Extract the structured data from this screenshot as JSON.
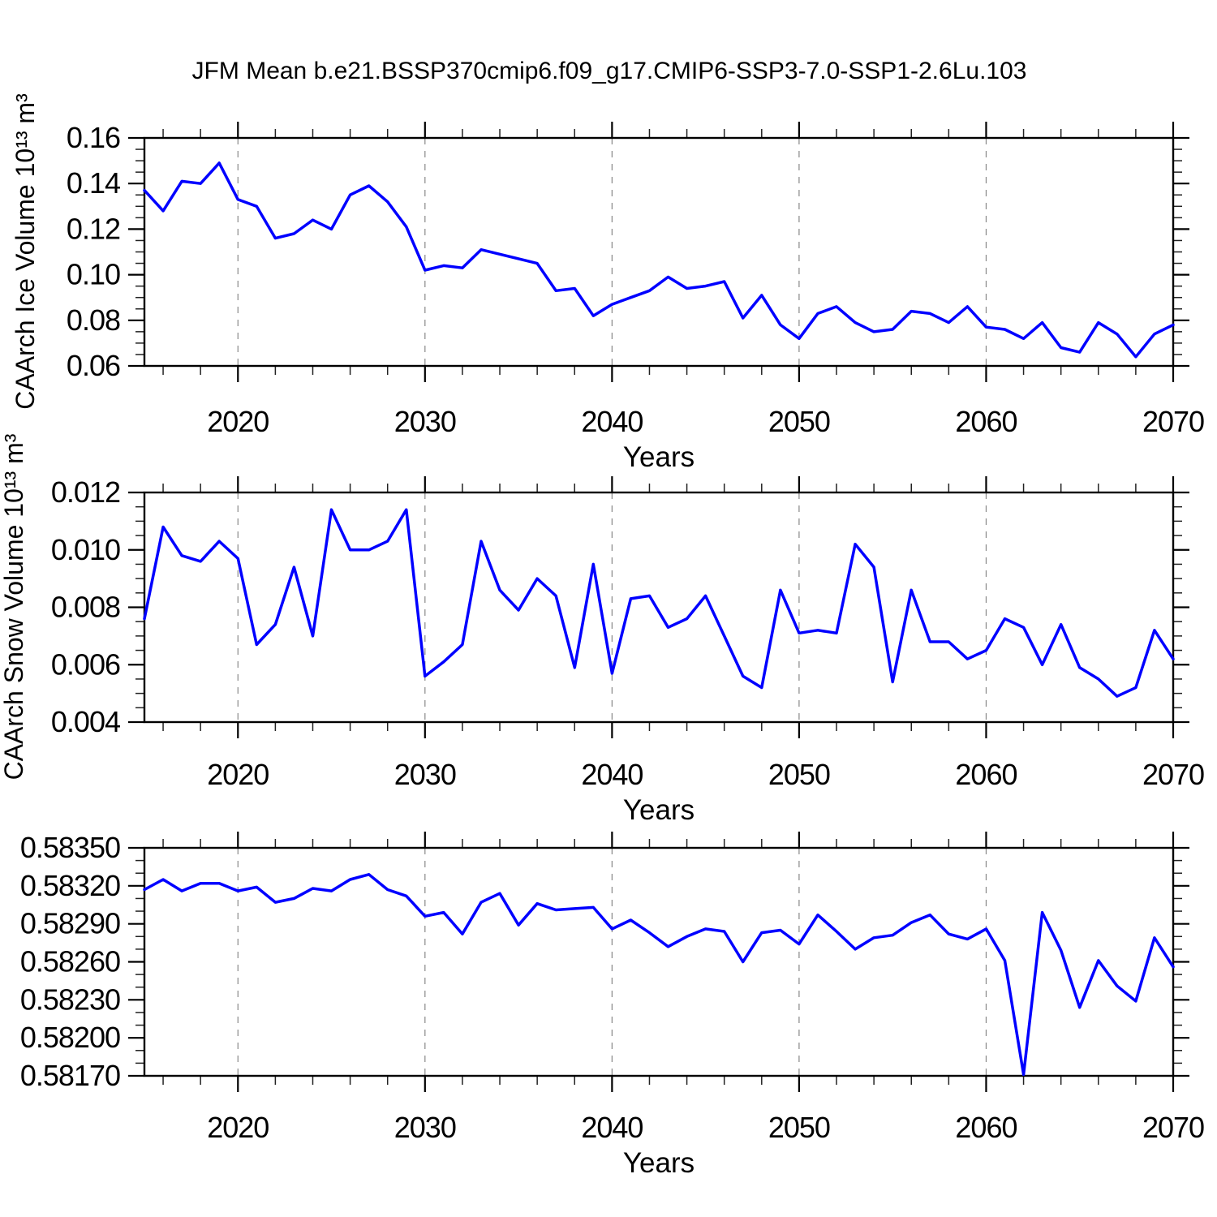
{
  "title": "JFM Mean b.e21.BSSP370cmip6.f09_g17.CMIP6-SSP3-7.0-SSP1-2.6Lu.103",
  "line_color": "#0000ff",
  "grid_color": "#888888",
  "frame_color": "#000000",
  "chart_data": [
    {
      "type": "line",
      "ylabel": "CAArch Ice Volume 10¹³ m³",
      "xlabel": "Years",
      "xlim": [
        2015,
        2070
      ],
      "ylim": [
        0.06,
        0.16
      ],
      "xticks": [
        2020,
        2030,
        2040,
        2050,
        2060,
        2070
      ],
      "xtick_labels": [
        "2020",
        "2030",
        "2040",
        "2050",
        "2060",
        "2070"
      ],
      "x_minor_step": 2,
      "yticks": [
        0.06,
        0.08,
        0.1,
        0.12,
        0.14,
        0.16
      ],
      "ytick_labels": [
        "0.06",
        "0.08",
        "0.10",
        "0.12",
        "0.14",
        "0.16"
      ],
      "y_minor_step": 0.005,
      "grid": "vertical-dashed",
      "x": [
        2015,
        2016,
        2017,
        2018,
        2019,
        2020,
        2021,
        2022,
        2023,
        2024,
        2025,
        2026,
        2027,
        2028,
        2029,
        2030,
        2031,
        2032,
        2033,
        2034,
        2035,
        2036,
        2037,
        2038,
        2039,
        2040,
        2041,
        2042,
        2043,
        2044,
        2045,
        2046,
        2047,
        2048,
        2049,
        2050,
        2051,
        2052,
        2053,
        2054,
        2055,
        2056,
        2057,
        2058,
        2059,
        2060,
        2061,
        2062,
        2063,
        2064,
        2065,
        2066,
        2067,
        2068,
        2069,
        2070
      ],
      "values": [
        0.137,
        0.128,
        0.141,
        0.14,
        0.149,
        0.133,
        0.13,
        0.116,
        0.118,
        0.124,
        0.12,
        0.135,
        0.139,
        0.132,
        0.121,
        0.102,
        0.104,
        0.103,
        0.111,
        0.109,
        0.107,
        0.105,
        0.093,
        0.094,
        0.082,
        0.087,
        0.09,
        0.093,
        0.099,
        0.094,
        0.095,
        0.097,
        0.081,
        0.091,
        0.078,
        0.072,
        0.083,
        0.086,
        0.079,
        0.075,
        0.076,
        0.084,
        0.083,
        0.079,
        0.086,
        0.077,
        0.076,
        0.072,
        0.079,
        0.068,
        0.066,
        0.079,
        0.074,
        0.064,
        0.074,
        0.078
      ]
    },
    {
      "type": "line",
      "ylabel": "CAArch Snow Volume 10¹³ m³",
      "xlabel": "Years",
      "xlim": [
        2015,
        2070
      ],
      "ylim": [
        0.004,
        0.012
      ],
      "xticks": [
        2020,
        2030,
        2040,
        2050,
        2060,
        2070
      ],
      "xtick_labels": [
        "2020",
        "2030",
        "2040",
        "2050",
        "2060",
        "2070"
      ],
      "x_minor_step": 2,
      "yticks": [
        0.004,
        0.006,
        0.008,
        0.01,
        0.012
      ],
      "ytick_labels": [
        "0.004",
        "0.006",
        "0.008",
        "0.010",
        "0.012"
      ],
      "y_minor_step": 0.0005,
      "grid": "vertical-dashed",
      "x": [
        2015,
        2016,
        2017,
        2018,
        2019,
        2020,
        2021,
        2022,
        2023,
        2024,
        2025,
        2026,
        2027,
        2028,
        2029,
        2030,
        2031,
        2032,
        2033,
        2034,
        2035,
        2036,
        2037,
        2038,
        2039,
        2040,
        2041,
        2042,
        2043,
        2044,
        2045,
        2046,
        2047,
        2048,
        2049,
        2050,
        2051,
        2052,
        2053,
        2054,
        2055,
        2056,
        2057,
        2058,
        2059,
        2060,
        2061,
        2062,
        2063,
        2064,
        2065,
        2066,
        2067,
        2068,
        2069,
        2070
      ],
      "values": [
        0.0076,
        0.0108,
        0.0098,
        0.0096,
        0.0103,
        0.0097,
        0.0067,
        0.0074,
        0.0094,
        0.007,
        0.0114,
        0.01,
        0.01,
        0.0103,
        0.0114,
        0.0056,
        0.0061,
        0.0067,
        0.0103,
        0.0086,
        0.0079,
        0.009,
        0.0084,
        0.0059,
        0.0095,
        0.0057,
        0.0083,
        0.0084,
        0.0073,
        0.0076,
        0.0084,
        0.007,
        0.0056,
        0.0052,
        0.0086,
        0.0071,
        0.0072,
        0.0071,
        0.0102,
        0.0094,
        0.0054,
        0.0086,
        0.0068,
        0.0068,
        0.0062,
        0.0065,
        0.0076,
        0.0073,
        0.006,
        0.0074,
        0.0059,
        0.0055,
        0.0049,
        0.0052,
        0.0072,
        0.0062
      ]
    },
    {
      "type": "line",
      "ylabel": "",
      "xlabel": "Years",
      "xlim": [
        2015,
        2070
      ],
      "ylim": [
        0.5817,
        0.5835
      ],
      "xticks": [
        2020,
        2030,
        2040,
        2050,
        2060,
        2070
      ],
      "xtick_labels": [
        "2020",
        "2030",
        "2040",
        "2050",
        "2060",
        "2070"
      ],
      "x_minor_step": 2,
      "yticks": [
        0.5817,
        0.582,
        0.5823,
        0.5826,
        0.5829,
        0.5832,
        0.5835
      ],
      "ytick_labels": [
        "0.58170",
        "0.58200",
        "0.58230",
        "0.58260",
        "0.58290",
        "0.58320",
        "0.58350"
      ],
      "y_minor_step": 0.0001,
      "grid": "vertical-dashed",
      "x": [
        2015,
        2016,
        2017,
        2018,
        2019,
        2020,
        2021,
        2022,
        2023,
        2024,
        2025,
        2026,
        2027,
        2028,
        2029,
        2030,
        2031,
        2032,
        2033,
        2034,
        2035,
        2036,
        2037,
        2038,
        2039,
        2040,
        2041,
        2042,
        2043,
        2044,
        2045,
        2046,
        2047,
        2048,
        2049,
        2050,
        2051,
        2052,
        2053,
        2054,
        2055,
        2056,
        2057,
        2058,
        2059,
        2060,
        2061,
        2062,
        2063,
        2064,
        2065,
        2066,
        2067,
        2068,
        2069,
        2070
      ],
      "values": [
        0.58317,
        0.58325,
        0.58316,
        0.58322,
        0.58322,
        0.58316,
        0.58319,
        0.58307,
        0.5831,
        0.58318,
        0.58316,
        0.58325,
        0.58329,
        0.58317,
        0.58312,
        0.58296,
        0.58299,
        0.58282,
        0.58307,
        0.58314,
        0.58289,
        0.58306,
        0.58301,
        0.58302,
        0.58303,
        0.58286,
        0.58293,
        0.58283,
        0.58272,
        0.5828,
        0.58286,
        0.58284,
        0.5826,
        0.58283,
        0.58285,
        0.58274,
        0.58297,
        0.58284,
        0.5827,
        0.58279,
        0.58281,
        0.58291,
        0.58297,
        0.58282,
        0.58278,
        0.58286,
        0.58261,
        0.58171,
        0.58299,
        0.58269,
        0.58224,
        0.58261,
        0.58241,
        0.58229,
        0.58279,
        0.58256
      ]
    }
  ]
}
